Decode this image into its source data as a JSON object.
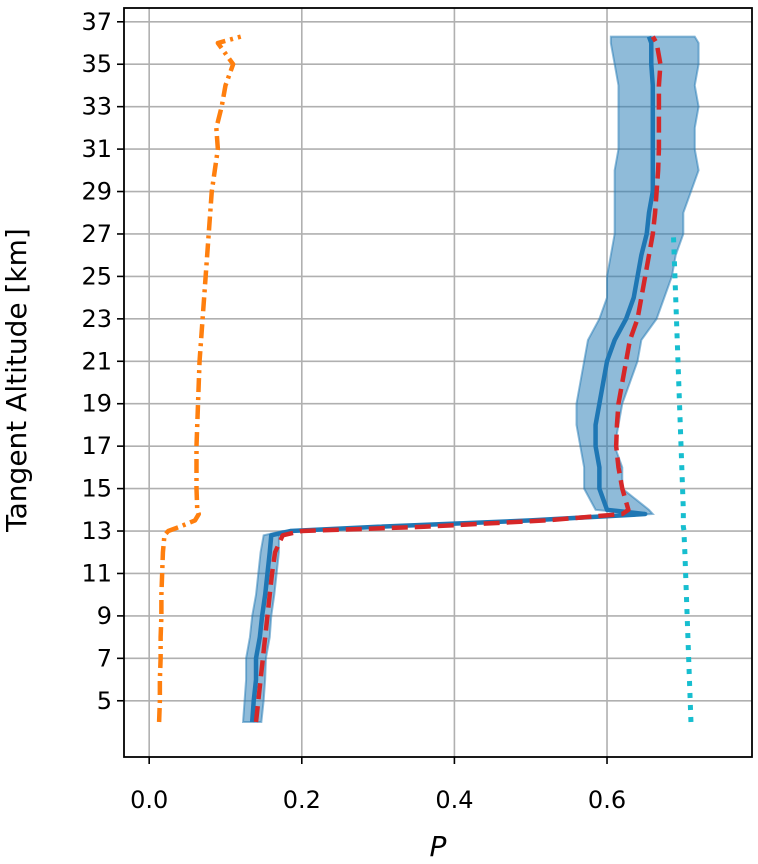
{
  "chart_data": {
    "type": "line",
    "xlabel": "P",
    "ylabel": "Tangent Altitude [km]",
    "xlim": [
      -0.033,
      0.79
    ],
    "ylim": [
      2.35,
      37.65
    ],
    "xticks": [
      {
        "value": 0,
        "label": "0.0"
      },
      0.2,
      0.4,
      0.6
    ],
    "yticks": [
      5,
      7,
      9,
      11,
      13,
      15,
      17,
      19,
      21,
      23,
      25,
      27,
      29,
      31,
      33,
      35,
      37
    ],
    "grid": true,
    "y": [
      4,
      5,
      6,
      7,
      8,
      9,
      10,
      11,
      12,
      12.8,
      13,
      13.2,
      13.5,
      13.8,
      14,
      15,
      16,
      17,
      18,
      19,
      20,
      21,
      22,
      23,
      24,
      25,
      26,
      27,
      28,
      29,
      30,
      31,
      32,
      33,
      34,
      35,
      36,
      36.3
    ],
    "series": [
      {
        "color": "#ff7f0e",
        "style": "dashdot",
        "values": [
          0.013,
          0.014,
          0.014,
          0.015,
          0.015,
          0.016,
          0.016,
          0.017,
          0.018,
          0.02,
          0.025,
          0.04,
          0.06,
          0.065,
          0.063,
          0.062,
          0.062,
          0.062,
          0.063,
          0.064,
          0.065,
          0.066,
          0.068,
          0.07,
          0.072,
          0.074,
          0.076,
          0.078,
          0.08,
          0.082,
          0.086,
          0.09,
          0.088,
          0.095,
          0.1,
          0.11,
          0.09,
          0.12
        ]
      },
      {
        "color": "#1f77b4",
        "style": "solid",
        "values": [
          0.135,
          0.137,
          0.14,
          0.14,
          0.145,
          0.148,
          0.152,
          0.155,
          0.158,
          0.16,
          0.185,
          0.3,
          0.5,
          0.65,
          0.6,
          0.59,
          0.59,
          0.585,
          0.585,
          0.59,
          0.595,
          0.6,
          0.61,
          0.625,
          0.635,
          0.64,
          0.645,
          0.652,
          0.655,
          0.66,
          0.66,
          0.66,
          0.66,
          0.66,
          0.66,
          0.658,
          0.658,
          0.655
        ],
        "lower": [
          0.123,
          0.125,
          0.127,
          0.127,
          0.132,
          0.135,
          0.14,
          0.143,
          0.146,
          0.15,
          0.175,
          0.29,
          0.49,
          0.64,
          0.585,
          0.57,
          0.57,
          0.565,
          0.56,
          0.56,
          0.565,
          0.57,
          0.575,
          0.59,
          0.6,
          0.6,
          0.605,
          0.61,
          0.61,
          0.61,
          0.61,
          0.615,
          0.615,
          0.615,
          0.615,
          0.61,
          0.605,
          0.605
        ],
        "upper": [
          0.147,
          0.15,
          0.152,
          0.153,
          0.158,
          0.16,
          0.164,
          0.167,
          0.17,
          0.17,
          0.195,
          0.31,
          0.51,
          0.66,
          0.655,
          0.62,
          0.62,
          0.61,
          0.615,
          0.62,
          0.63,
          0.64,
          0.645,
          0.665,
          0.675,
          0.685,
          0.69,
          0.7,
          0.7,
          0.71,
          0.72,
          0.715,
          0.715,
          0.72,
          0.715,
          0.72,
          0.72,
          0.715
        ]
      },
      {
        "color": "#d62728",
        "style": "dashed",
        "values": [
          0.14,
          0.143,
          0.146,
          0.149,
          0.152,
          0.155,
          0.158,
          0.161,
          0.165,
          0.175,
          0.2,
          0.36,
          0.52,
          0.62,
          0.628,
          0.62,
          0.615,
          0.612,
          0.613,
          0.615,
          0.62,
          0.625,
          0.63,
          0.64,
          0.645,
          0.65,
          0.655,
          0.66,
          0.663,
          0.665,
          0.667,
          0.668,
          0.668,
          0.668,
          0.668,
          0.67,
          0.665,
          0.66
        ]
      },
      {
        "color": "#17becf",
        "style": "dotted",
        "values": [
          0.71,
          0.709,
          0.708,
          0.707,
          0.706,
          0.705,
          0.704,
          0.703,
          0.702,
          0.701,
          0.701,
          0.7,
          0.7,
          0.7,
          0.7,
          0.699,
          0.698,
          0.697,
          0.696,
          0.695,
          0.694,
          0.693,
          0.692,
          0.691,
          0.69,
          0.689,
          0.688,
          0.687,
          null,
          null,
          null,
          null,
          null,
          null,
          null,
          null,
          null,
          null
        ]
      }
    ]
  }
}
